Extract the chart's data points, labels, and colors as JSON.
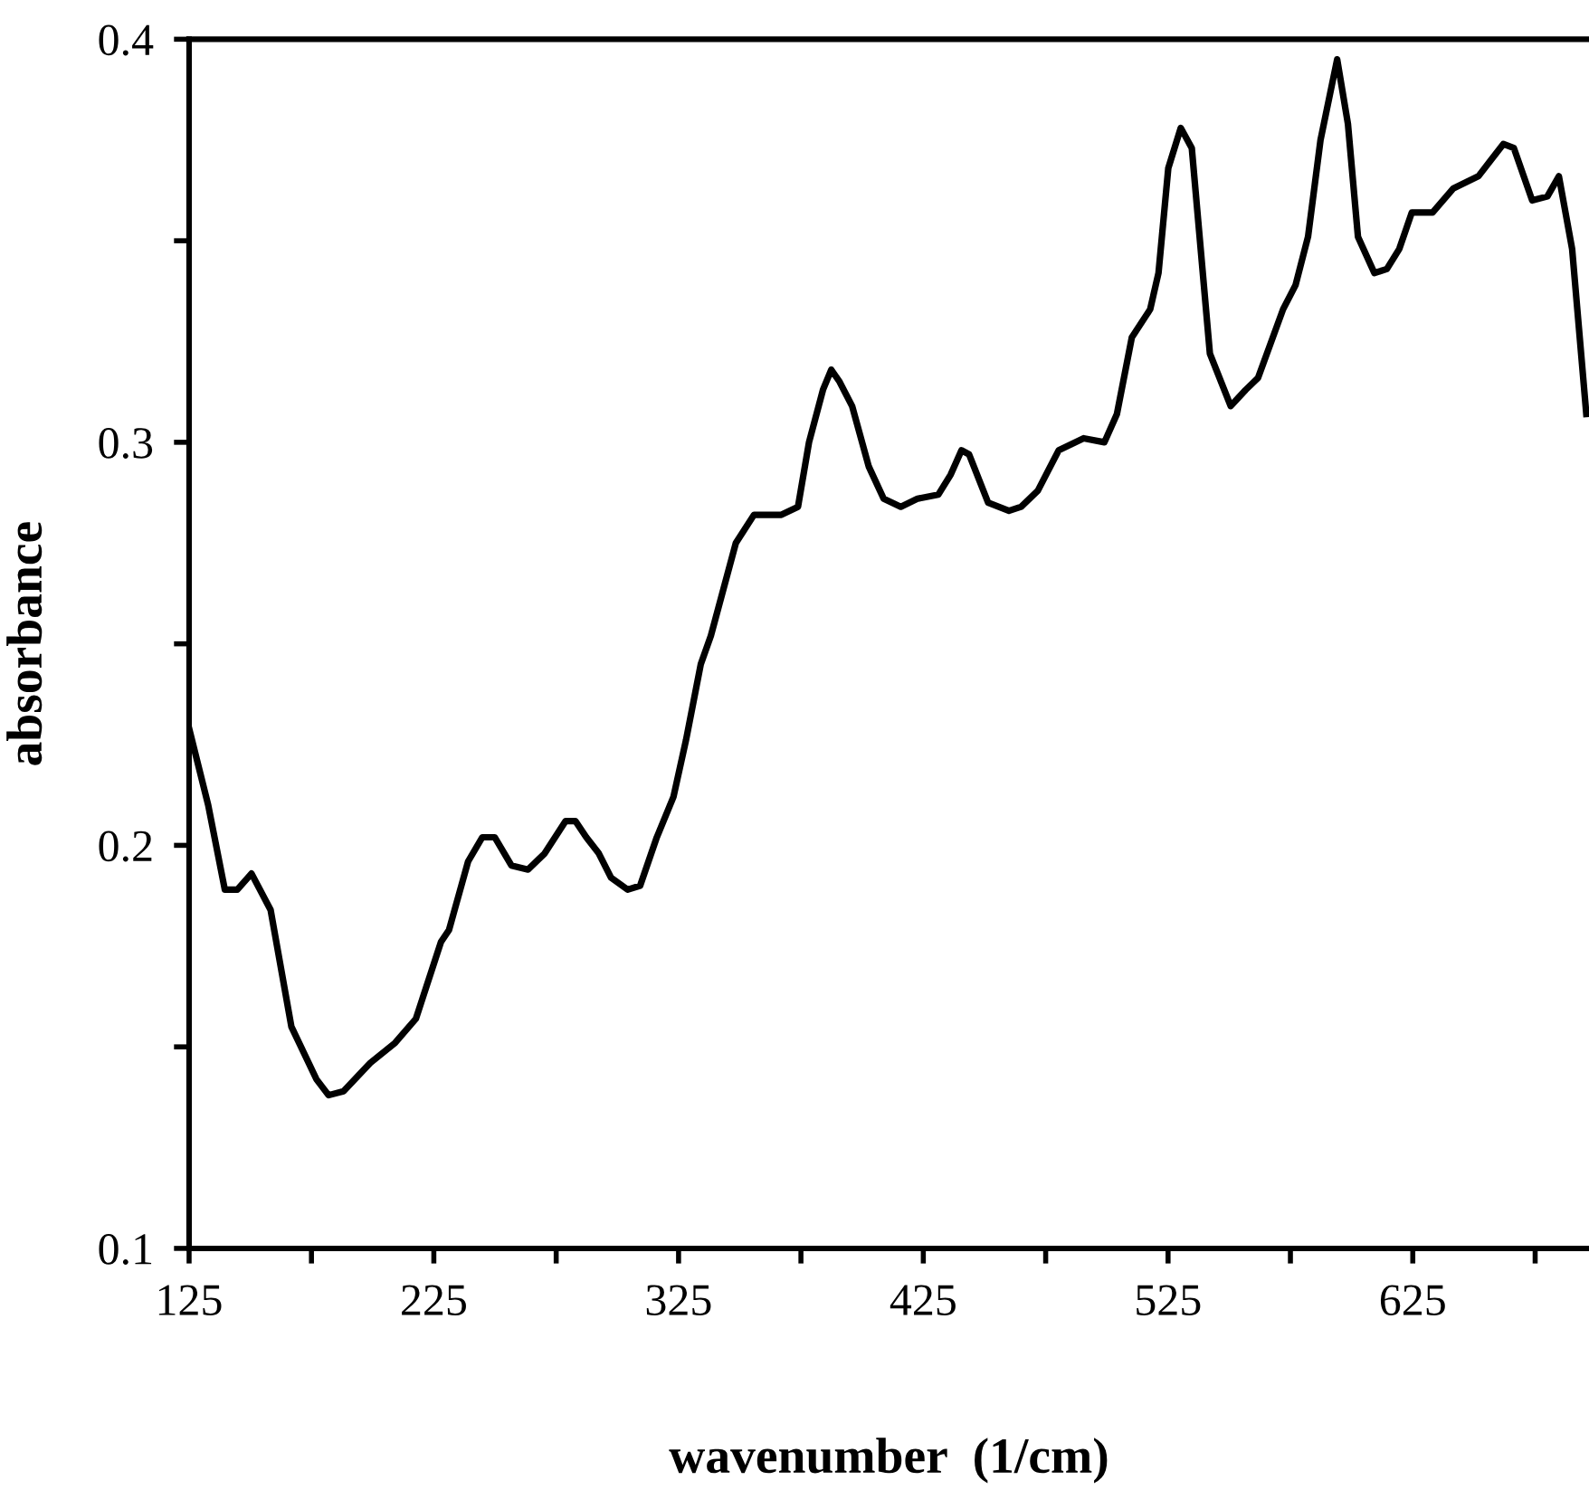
{
  "chart_data": {
    "type": "line",
    "xlabel": "wavenumber  (1/cm)",
    "ylabel": "absorbance",
    "xlim": [
      125,
      697
    ],
    "ylim": [
      0.1,
      0.4
    ],
    "xticks": [
      125,
      {
        "value": 175,
        "label": null
      },
      225,
      {
        "value": 275,
        "label": null
      },
      325,
      {
        "value": 375,
        "label": null
      },
      425,
      {
        "value": 475,
        "label": null
      },
      525,
      {
        "value": 575,
        "label": null
      },
      625,
      {
        "value": 675,
        "label": null
      }
    ],
    "yticks": [
      0.1,
      {
        "value": 0.15,
        "label": null
      },
      0.2,
      {
        "value": 0.25,
        "label": null
      },
      0.3,
      {
        "value": 0.35,
        "label": null
      },
      0.4
    ],
    "grid": false,
    "legend": false,
    "marker": "none",
    "line_style": "solid",
    "series": [
      {
        "color": "#000000",
        "x": [
          125,
          132.8,
          139.6,
          144.7,
          150.5,
          158.3,
          166.8,
          177,
          182,
          188.1,
          199,
          209.2,
          217.7,
          227.9,
          231.2,
          239,
          244.8,
          249.9,
          256.7,
          263.5,
          270.3,
          278.8,
          282.9,
          287.3,
          292.4,
          297.4,
          304.2,
          309.3,
          316.1,
          322.9,
          328,
          334.1,
          338.2,
          348.4,
          355.8,
          362,
          367,
          373.8,
          378.3,
          384,
          387.4,
          390.8,
          395.9,
          402.7,
          408.8,
          415.8,
          422.6,
          431.1,
          436.2,
          440.6,
          443.7,
          451.5,
          460,
          465,
          471.8,
          480.3,
          490.5,
          499,
          504.1,
          510.2,
          517.7,
          521.1,
          525.1,
          530.2,
          534.7,
          542.1,
          550.6,
          556.7,
          561.8,
          572,
          577.1,
          582.2,
          587.3,
          594.1,
          598.5,
          602.6,
          609.3,
          614.4,
          619.5,
          624.6,
          633.1,
          641.6,
          651.8,
          656.9,
          662,
          666.3,
          673.8,
          680,
          684.7,
          690.1,
          695.9
        ],
        "values": [
          0.229,
          0.21,
          0.189,
          0.189,
          0.193,
          0.184,
          0.155,
          0.142,
          0.138,
          0.139,
          0.146,
          0.151,
          0.157,
          0.176,
          0.179,
          0.196,
          0.202,
          0.202,
          0.195,
          0.194,
          0.198,
          0.206,
          0.206,
          0.202,
          0.198,
          0.192,
          0.189,
          0.19,
          0.202,
          0.212,
          0.226,
          0.245,
          0.252,
          0.275,
          0.282,
          0.282,
          0.282,
          0.284,
          0.3,
          0.313,
          0.318,
          0.315,
          0.309,
          0.294,
          0.286,
          0.284,
          0.286,
          0.287,
          0.292,
          0.298,
          0.297,
          0.285,
          0.283,
          0.284,
          0.288,
          0.298,
          0.301,
          0.3,
          0.307,
          0.326,
          0.333,
          0.342,
          0.368,
          0.378,
          0.373,
          0.322,
          0.309,
          0.313,
          0.316,
          0.333,
          0.339,
          0.351,
          0.375,
          0.395,
          0.379,
          0.351,
          0.342,
          0.343,
          0.348,
          0.357,
          0.357,
          0.363,
          0.366,
          0.37,
          0.374,
          0.373,
          0.36,
          0.361,
          0.366,
          0.348,
          0.307
        ]
      }
    ]
  }
}
